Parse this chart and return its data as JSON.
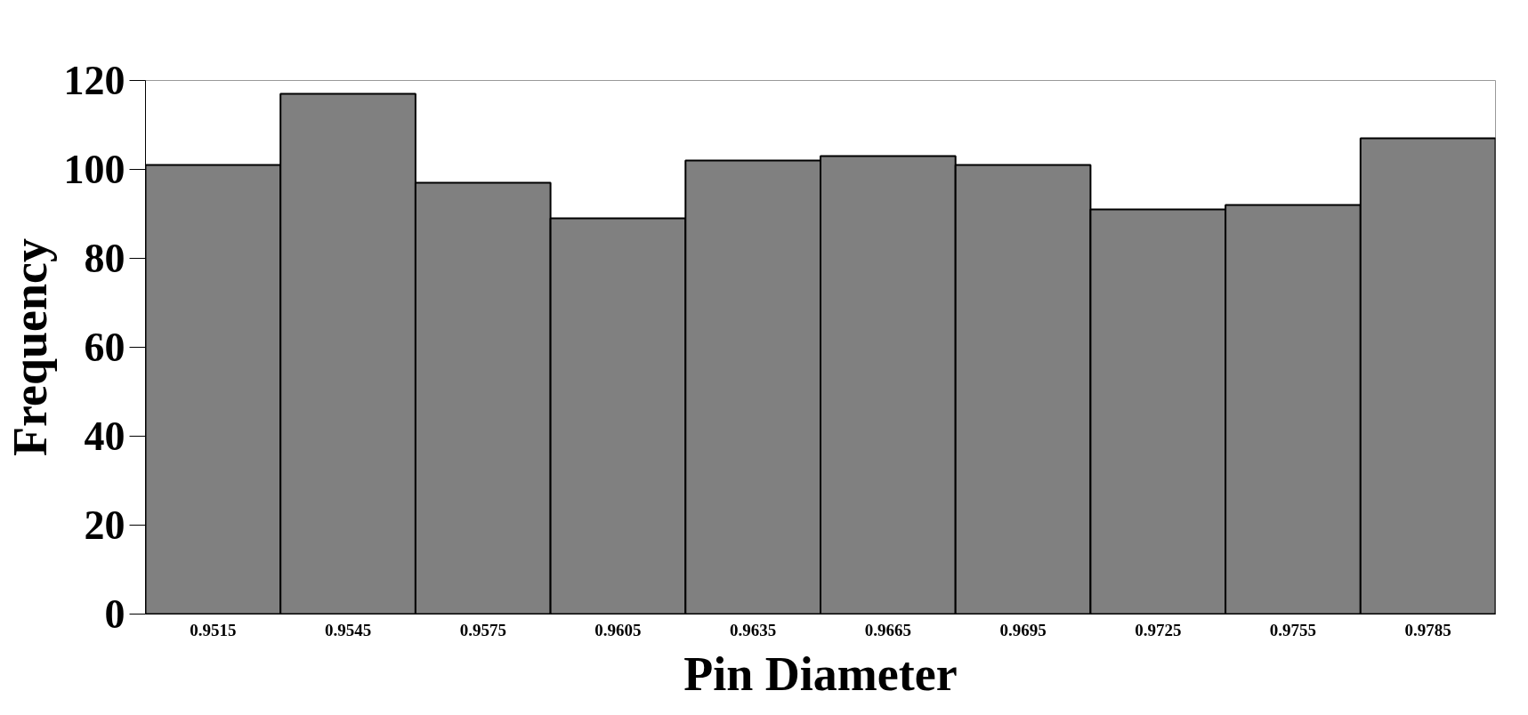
{
  "chart_data": {
    "type": "bar",
    "xlabel": "Pin Diameter",
    "ylabel": "Frequency",
    "categories": [
      "0.9515",
      "0.9545",
      "0.9575",
      "0.9605",
      "0.9635",
      "0.9665",
      "0.9695",
      "0.9725",
      "0.9755",
      "0.9785"
    ],
    "values": [
      101,
      117,
      97,
      89,
      102,
      103,
      101,
      91,
      92,
      107
    ],
    "color": "#808080",
    "ylim": [
      0,
      120
    ],
    "yticks": [
      0,
      20,
      40,
      60,
      80,
      100,
      120
    ],
    "grid": false
  }
}
